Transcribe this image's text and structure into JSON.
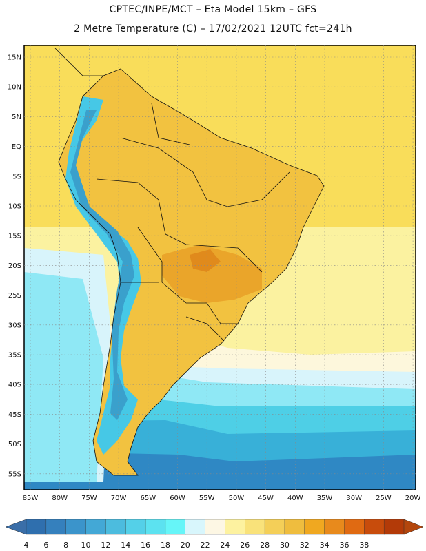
{
  "header": {
    "line1": "CPTEC/INPE/MCT –  Eta Model 15km – GFS",
    "line2": "2 Metre Temperature (C) – 17/02/2021 12UTC fct=241h"
  },
  "map": {
    "lat_labels": [
      "15N",
      "10N",
      "5N",
      "EQ",
      "5S",
      "10S",
      "15S",
      "20S",
      "25S",
      "30S",
      "35S",
      "40S",
      "45S",
      "50S",
      "55S"
    ],
    "lon_labels": [
      "85W",
      "80W",
      "75W",
      "70W",
      "65W",
      "60W",
      "55W",
      "50W",
      "45W",
      "40W",
      "35W",
      "30W",
      "25W",
      "20W"
    ],
    "colors": {
      "ocean_tropical": "#f9dd5a",
      "ocean_subtropical": "#fbf2a0",
      "ocean_cool": "#fdf7dc",
      "land_warm": "#f2c240",
      "land_hot": "#eaa52a",
      "hotspot": "#e08a1c",
      "andes": "#46c8e6",
      "andes_high": "#3aa0cc",
      "south_sea_1": "#d8f4fb",
      "south_sea_2": "#8fe8f5",
      "south_sea_3": "#4ecfe6",
      "south_sea_4": "#38b0d8",
      "south_sea_5": "#2f88c4"
    }
  },
  "colorbar": {
    "ticks": [
      "4",
      "6",
      "8",
      "10",
      "12",
      "14",
      "16",
      "18",
      "20",
      "22",
      "24",
      "26",
      "28",
      "30",
      "32",
      "34",
      "36",
      "38"
    ],
    "colors": [
      "#2f6fae",
      "#3580bd",
      "#3b94cb",
      "#43a8d6",
      "#4cbcde",
      "#54d0e8",
      "#5ce2f0",
      "#66f5f8",
      "#d8f6fc",
      "#fdf7e4",
      "#fdf2a0",
      "#f9e27a",
      "#f4cf58",
      "#efbd3e",
      "#f0a820",
      "#e88a1c",
      "#e06a12",
      "#c84c0c",
      "#b33a08"
    ],
    "low_arrow": "#3a6ea8",
    "high_arrow": "#b3460d"
  }
}
